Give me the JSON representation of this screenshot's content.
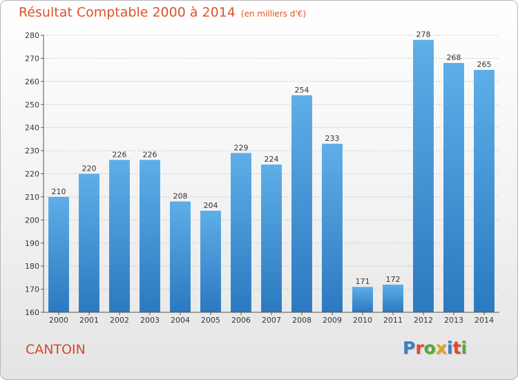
{
  "title": "Résultat Comptable 2000 à 2014",
  "subtitle": "(en milliers d'€)",
  "commune": "CANTOIN",
  "brand": {
    "text": "Proxiti",
    "letter_colors": [
      "#3a7fc1",
      "#e04a2a",
      "#5aa83a",
      "#e0a21a",
      "#3a7fc1",
      "#e04a2a",
      "#5aa83a"
    ]
  },
  "colors": {
    "bar_top": "#5eaee8",
    "bar_bottom": "#2b79c0",
    "title": "#d9552a",
    "commune": "#d24a2a"
  },
  "chart_data": {
    "type": "bar",
    "categories": [
      "2000",
      "2001",
      "2002",
      "2003",
      "2004",
      "2005",
      "2006",
      "2007",
      "2008",
      "2009",
      "2010",
      "2011",
      "2012",
      "2013",
      "2014"
    ],
    "values": [
      210,
      220,
      226,
      226,
      208,
      204,
      229,
      224,
      254,
      233,
      171,
      172,
      278,
      268,
      265
    ],
    "title": "Résultat Comptable 2000 à 2014",
    "subtitle": "(en milliers d'€)",
    "xlabel": "",
    "ylabel": "",
    "ylim": [
      160,
      280
    ],
    "yticks": [
      160,
      170,
      180,
      190,
      200,
      210,
      220,
      230,
      240,
      250,
      260,
      270,
      280
    ],
    "grid": true,
    "data_labels": true
  }
}
